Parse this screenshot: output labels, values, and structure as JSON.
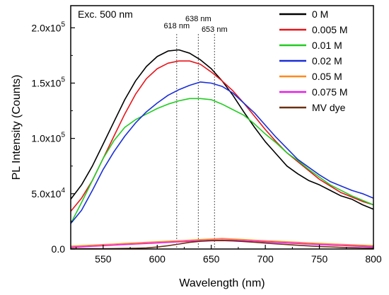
{
  "chart_data": {
    "type": "line",
    "xlabel": "Wavelength (nm)",
    "ylabel": "PL Intensity (Counts)",
    "xlim": [
      520,
      800
    ],
    "ylim": [
      0,
      220000
    ],
    "x_ticks": [
      550,
      600,
      650,
      700,
      750,
      800
    ],
    "y_ticks": [
      {
        "value": 0,
        "label": "0.0"
      },
      {
        "value": 50000,
        "label": "5.0x10",
        "exp": "4"
      },
      {
        "value": 100000,
        "label": "1.0x10",
        "exp": "5"
      },
      {
        "value": 150000,
        "label": "1.5x10",
        "exp": "5"
      },
      {
        "value": 200000,
        "label": "2.0x10",
        "exp": "5"
      }
    ],
    "annotation": "Exc. 500 nm",
    "reference_lines": [
      {
        "x": 618,
        "label": "618 nm"
      },
      {
        "x": 638,
        "label": "638 nm"
      },
      {
        "x": 653,
        "label": "653 nm"
      }
    ],
    "legend_position": "top-right",
    "x": [
      520,
      530,
      540,
      550,
      560,
      570,
      580,
      590,
      600,
      610,
      620,
      630,
      640,
      650,
      660,
      670,
      680,
      690,
      700,
      710,
      720,
      730,
      740,
      750,
      760,
      770,
      780,
      790,
      800
    ],
    "series": [
      {
        "name": "0 M",
        "color": "#000000",
        "values": [
          45000,
          58000,
          75000,
          95000,
          115000,
          135000,
          152000,
          165000,
          174000,
          179000,
          180000,
          177000,
          171000,
          163000,
          152000,
          139000,
          124000,
          110000,
          97000,
          86000,
          75000,
          68000,
          62000,
          58000,
          53000,
          48000,
          45000,
          40000,
          36000
        ]
      },
      {
        "name": "0.005 M",
        "color": "#e8141a",
        "values": [
          34000,
          46000,
          62000,
          82000,
          102000,
          122000,
          140000,
          154000,
          163000,
          168000,
          170000,
          170000,
          167000,
          160000,
          152000,
          143000,
          132000,
          120000,
          108000,
          97000,
          87000,
          79000,
          71000,
          63000,
          57000,
          51000,
          47000,
          43000,
          40000
        ]
      },
      {
        "name": "0.01 M",
        "color": "#22cc22",
        "values": [
          23000,
          42000,
          62000,
          82000,
          98000,
          110000,
          117000,
          122000,
          127000,
          131000,
          134000,
          136000,
          136000,
          135000,
          131000,
          126000,
          121000,
          113000,
          104000,
          96000,
          87000,
          80000,
          72000,
          65000,
          58000,
          53000,
          48000,
          44000,
          40000
        ]
      },
      {
        "name": "0.02 M",
        "color": "#1a2fd6",
        "values": [
          23000,
          35000,
          53000,
          72000,
          88000,
          102000,
          114000,
          124000,
          132000,
          139000,
          144000,
          148000,
          151000,
          150000,
          147000,
          141000,
          132000,
          123000,
          112000,
          101000,
          91000,
          81000,
          74000,
          67000,
          61000,
          57000,
          53000,
          50000,
          46000
        ]
      },
      {
        "name": "0.05 M",
        "color": "#ff8a1c",
        "values": [
          2500,
          3000,
          3500,
          4000,
          4500,
          5000,
          5500,
          6000,
          6500,
          7000,
          7500,
          8000,
          8500,
          9000,
          9500,
          9000,
          8500,
          8000,
          7500,
          7000,
          6500,
          6000,
          5500,
          5000,
          4600,
          4200,
          3800,
          3400,
          3000
        ]
      },
      {
        "name": "0.075 M",
        "color": "#e81ce8",
        "values": [
          1500,
          2000,
          2500,
          3000,
          3500,
          4000,
          4500,
          5000,
          5500,
          6000,
          6500,
          7000,
          7500,
          8000,
          8200,
          8000,
          7500,
          7000,
          6500,
          6000,
          5500,
          5000,
          4500,
          4000,
          3600,
          3200,
          2800,
          2400,
          2000
        ]
      },
      {
        "name": "MV dye",
        "color": "#6b3012",
        "values": [
          300,
          300,
          300,
          300,
          400,
          500,
          700,
          1000,
          1800,
          3000,
          4500,
          6000,
          7000,
          7500,
          7600,
          7300,
          6800,
          6100,
          5400,
          4700,
          4000,
          3400,
          2800,
          2300,
          1900,
          1500,
          1200,
          1000,
          800
        ]
      }
    ]
  }
}
